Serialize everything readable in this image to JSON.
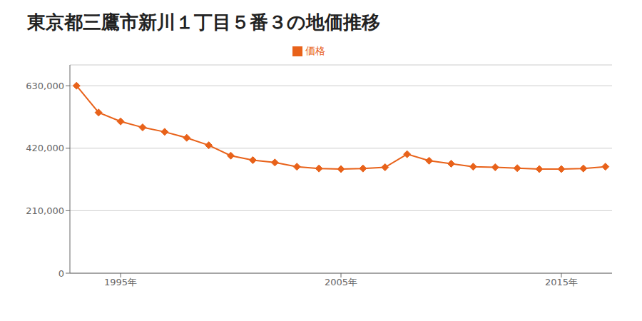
{
  "chart_data": {
    "type": "line",
    "title": "東京都三鷹市新川１丁目５番３の地価推移",
    "x": [
      1993,
      1994,
      1995,
      1996,
      1997,
      1998,
      1999,
      2000,
      2001,
      2002,
      2003,
      2004,
      2005,
      2006,
      2007,
      2008,
      2009,
      2010,
      2011,
      2012,
      2013,
      2014,
      2015,
      2016,
      2017
    ],
    "series": [
      {
        "name": "価格",
        "color": "#e8621a",
        "marker": "diamond",
        "values": [
          630000,
          540000,
          510000,
          490000,
          475000,
          455000,
          430000,
          395000,
          380000,
          372000,
          358000,
          352000,
          350000,
          352000,
          356000,
          400000,
          378000,
          368000,
          358000,
          356000,
          353000,
          350000,
          350000,
          352000,
          358000
        ]
      }
    ],
    "xlim": [
      1992.7,
      2017.3
    ],
    "xticks": [
      {
        "value": 1995,
        "label": "1995年"
      },
      {
        "value": 2005,
        "label": "2005年"
      },
      {
        "value": 2015,
        "label": "2015年"
      }
    ],
    "ylim": [
      0,
      700000
    ],
    "yticks": [
      0,
      {
        "value": 210000,
        "label": "210,000"
      },
      {
        "value": 420000,
        "label": "420,000"
      },
      {
        "value": 630000,
        "label": "630,000"
      }
    ],
    "grid": true,
    "legend": "top"
  }
}
